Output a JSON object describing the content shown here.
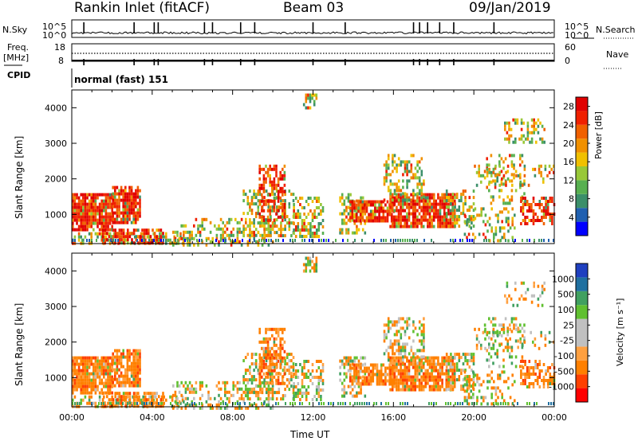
{
  "header": {
    "station": "Rankin Inlet (fitACF)",
    "beam": "Beam 03",
    "date": "09/Jan/2019"
  },
  "noise_panel": {
    "left_label": "N.Sky",
    "right_label": "N.Search",
    "tick_top": "10^5",
    "tick_bottom": "10^0"
  },
  "freq_panel": {
    "left_label": "Freq.",
    "unit": "[MHz]",
    "left_ticks": [
      "18",
      "8"
    ],
    "right_ticks": [
      "60",
      "0"
    ],
    "right_label": "Nave"
  },
  "cpid": {
    "label": "CPID",
    "value": "normal (fast) 151"
  },
  "colors": {
    "power_scale": [
      "#0000ff",
      "#2060b0",
      "#3b8f6a",
      "#58b050",
      "#98c838",
      "#f0c000",
      "#f09000",
      "#f06000",
      "#f02000",
      "#e00000"
    ],
    "velocity_scale": [
      "#ff0000",
      "#ff4000",
      "#ff8000",
      "#ffa040",
      "#c0c0c0",
      "#c0c0c0",
      "#60c030",
      "#40a060",
      "#2070a0",
      "#2040c0"
    ]
  },
  "chart_data": [
    {
      "type": "heatmap",
      "name": "power",
      "ylabel": "Slant Range [km]",
      "xlabel": "",
      "xlim": [
        0,
        24
      ],
      "ylim": [
        180,
        4500
      ],
      "x_tick_labels": [
        "00:00",
        "04:00",
        "08:00",
        "12:00",
        "16:00",
        "20:00",
        "00:00"
      ],
      "y_ticks": [
        1000,
        2000,
        3000,
        4000
      ],
      "colorbar": {
        "label": "Power [dB]",
        "ticks": [
          "4",
          "8",
          "12",
          "16",
          "20",
          "24",
          "28"
        ],
        "range": [
          0,
          30
        ]
      }
    },
    {
      "type": "heatmap",
      "name": "velocity",
      "ylabel": "Slant Range [km]",
      "xlabel": "Time UT",
      "xlim": [
        0,
        24
      ],
      "ylim": [
        180,
        4500
      ],
      "x_tick_labels": [
        "00:00",
        "04:00",
        "08:00",
        "12:00",
        "16:00",
        "20:00",
        "00:00"
      ],
      "y_ticks": [
        1000,
        2000,
        3000,
        4000
      ],
      "colorbar": {
        "label": "Velocity [m s⁻¹]",
        "ticks": [
          "1000",
          "500",
          "100",
          "25",
          "-25",
          "-100",
          "-500",
          "-1000"
        ]
      }
    }
  ]
}
